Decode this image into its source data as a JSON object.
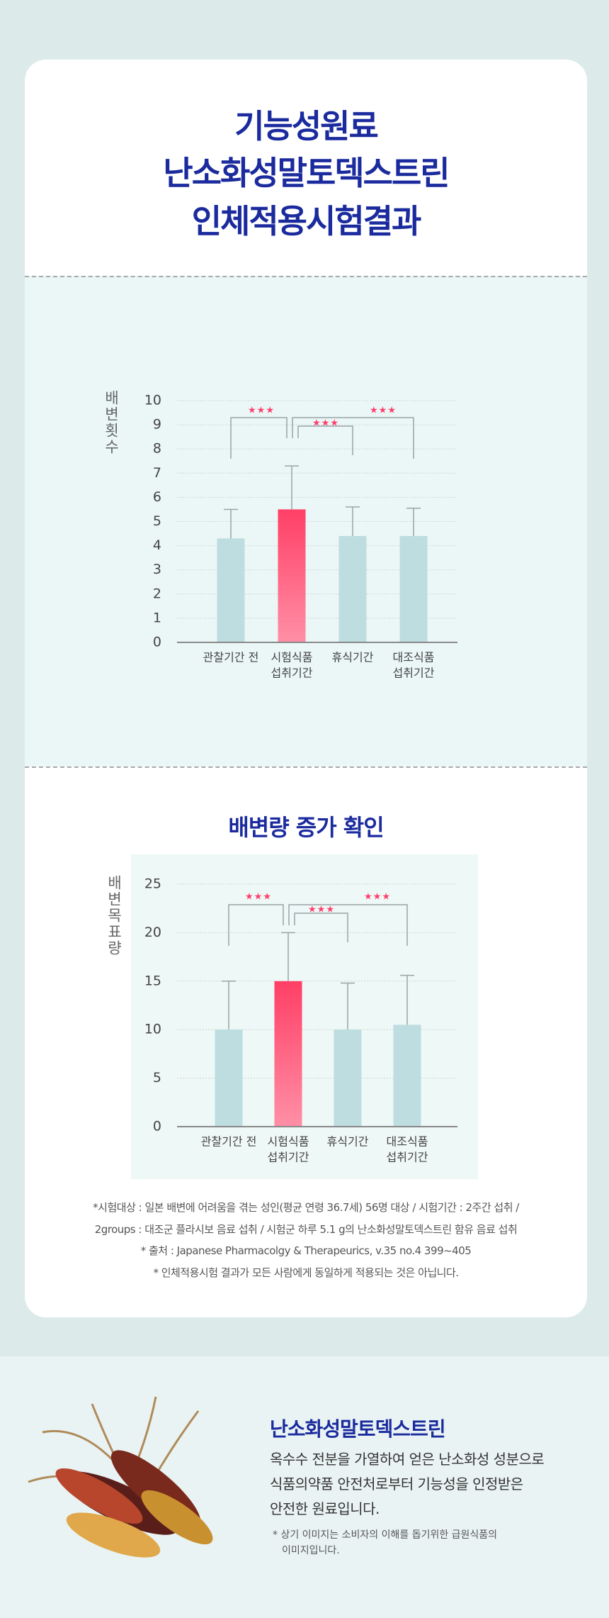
{
  "header": {
    "title_lines": [
      "기능성원료",
      "난소화성말토덱스트린",
      "인체적용시험결과"
    ]
  },
  "chart_data": [
    {
      "type": "bar",
      "y_label": "배변횟수",
      "categories": [
        [
          "관찰기간 전"
        ],
        [
          "시험식품",
          "섭취기간"
        ],
        [
          "휴식기간"
        ],
        [
          "대조식품",
          "섭취기간"
        ]
      ],
      "values": [
        4.3,
        5.5,
        4.4,
        4.4
      ],
      "errors": [
        1.2,
        1.8,
        1.2,
        1.15
      ],
      "colors": [
        "#bddde1",
        "#ff4d70",
        "#bddde1",
        "#bddde1"
      ],
      "ylim": [
        0,
        10
      ],
      "yticks": [
        0,
        1,
        2,
        3,
        4,
        5,
        6,
        7,
        8,
        9,
        10
      ],
      "grid": true,
      "annotations": [
        "★★★",
        "★★★",
        "★★★"
      ]
    },
    {
      "type": "bar",
      "title": "배변량 증가 확인",
      "y_label": "배변목표량",
      "categories": [
        [
          "관찰기간 전"
        ],
        [
          "시험식품",
          "섭취기간"
        ],
        [
          "휴식기간"
        ],
        [
          "대조식품",
          "섭취기간"
        ]
      ],
      "values": [
        10,
        15,
        10,
        10.5
      ],
      "errors": [
        5,
        5,
        4.8,
        5.1
      ],
      "colors": [
        "#bddde1",
        "#ff4d70",
        "#bddde1",
        "#bddde1"
      ],
      "ylim": [
        0,
        25
      ],
      "yticks": [
        0,
        5,
        10,
        15,
        20,
        25
      ],
      "grid": true,
      "annotations": [
        "★★★",
        "★★★",
        "★★★"
      ]
    }
  ],
  "footnotes": [
    "*시험대상 : 일본 배변에 어려움을 겪는 성인(평균 연령 36.7세) 56명 대상 / 시험기간 : 2주간 섭취 /",
    "2groups : 대조군 플라시보 음료 섭취 / 시험군 하루 5.1 g의 난소화성말토덱스트린 함유 음료 섭취",
    "* 출처 : Japanese Pharmacolgy & Therapeurics, v.35 no.4 399~405",
    "* 인체적용시험 결과가 모든 사람에게 동일하게 적용되는 것은 아닙니다."
  ],
  "product": {
    "title": "난소화성말토덱스트린",
    "description_lines": [
      "옥수수 전분을 가열하여 얻은 난소화성 성분으로",
      "식품의약품 안전처로부터 기능성을 인정받은",
      "안전한 원료입니다."
    ],
    "note_lines": [
      "* 상기 이미지는 소비자의 이해를 돕기위한 급원식품의",
      "이미지입니다."
    ]
  }
}
